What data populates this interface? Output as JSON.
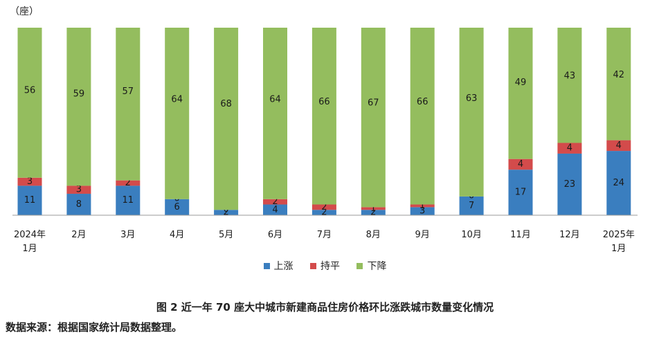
{
  "unit_label": "（座）",
  "caption": "图 2 近一年 70 座大中城市新建商品住房价格环比涨跌城市数量变化情况",
  "source": "数据来源：根据国家统计局数据整理。",
  "colors": {
    "up": "#3a7ebf",
    "flat": "#d34b4b",
    "down": "#94bd5e"
  },
  "chart_data": {
    "type": "bar",
    "stacked": true,
    "categories": [
      "2024年1月",
      "2月",
      "3月",
      "4月",
      "5月",
      "6月",
      "7月",
      "8月",
      "9月",
      "10月",
      "11月",
      "12月",
      "2025年1月"
    ],
    "category_lines": [
      [
        "2024年",
        "1月"
      ],
      [
        "2月"
      ],
      [
        "3月"
      ],
      [
        "4月"
      ],
      [
        "5月"
      ],
      [
        "6月"
      ],
      [
        "7月"
      ],
      [
        "8月"
      ],
      [
        "9月"
      ],
      [
        "10月"
      ],
      [
        "11月"
      ],
      [
        "12月"
      ],
      [
        "2025年",
        "1月"
      ]
    ],
    "series": [
      {
        "name": "上涨",
        "values": [
          11,
          8,
          11,
          6,
          2,
          4,
          2,
          2,
          3,
          7,
          17,
          23,
          24
        ]
      },
      {
        "name": "持平",
        "values": [
          3,
          3,
          2,
          0,
          0,
          2,
          2,
          1,
          1,
          0,
          4,
          4,
          4
        ]
      },
      {
        "name": "下降",
        "values": [
          56,
          59,
          57,
          64,
          68,
          64,
          66,
          67,
          66,
          63,
          49,
          43,
          42
        ]
      }
    ],
    "ylim": [
      0,
      70
    ],
    "grid": false,
    "legend_position": "bottom"
  }
}
